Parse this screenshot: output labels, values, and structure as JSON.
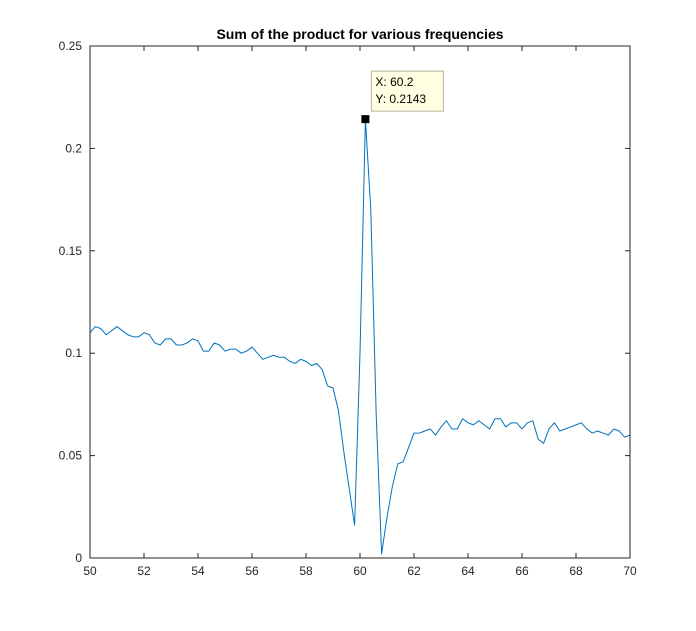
{
  "chart_data": {
    "type": "line",
    "title": "Sum of the product for various frequencies",
    "xlabel": "",
    "ylabel": "",
    "xlim": [
      50,
      70
    ],
    "ylim": [
      0,
      0.25
    ],
    "xticks": [
      50,
      52,
      54,
      56,
      58,
      60,
      62,
      64,
      66,
      68,
      70
    ],
    "xtick_labels": [
      "50",
      "52",
      "54",
      "56",
      "58",
      "60",
      "62",
      "64",
      "66",
      "68",
      "70"
    ],
    "yticks": [
      0,
      0.05,
      0.1,
      0.15,
      0.2,
      0.25
    ],
    "ytick_labels": [
      "0",
      "0.05",
      "0.1",
      "0.15",
      "0.2",
      "0.25"
    ],
    "grid": false,
    "series": [
      {
        "color": "#0072BD",
        "x": [
          50.0,
          50.2,
          50.4,
          50.6,
          50.8,
          51.0,
          51.2,
          51.4,
          51.6,
          51.8,
          52.0,
          52.2,
          52.4,
          52.6,
          52.8,
          53.0,
          53.2,
          53.4,
          53.6,
          53.8,
          54.0,
          54.2,
          54.4,
          54.6,
          54.8,
          55.0,
          55.2,
          55.4,
          55.6,
          55.8,
          56.0,
          56.2,
          56.4,
          56.6,
          56.8,
          57.0,
          57.2,
          57.4,
          57.6,
          57.8,
          58.0,
          58.2,
          58.4,
          58.6,
          58.8,
          59.0,
          59.2,
          59.4,
          59.6,
          59.8,
          60.0,
          60.2,
          60.4,
          60.6,
          60.8,
          61.0,
          61.2,
          61.4,
          61.6,
          61.8,
          62.0,
          62.2,
          62.4,
          62.6,
          62.8,
          63.0,
          63.2,
          63.4,
          63.6,
          63.8,
          64.0,
          64.2,
          64.4,
          64.6,
          64.8,
          65.0,
          65.2,
          65.4,
          65.6,
          65.8,
          66.0,
          66.2,
          66.4,
          66.6,
          66.8,
          67.0,
          67.2,
          67.4,
          67.6,
          67.8,
          68.0,
          68.2,
          68.4,
          68.6,
          68.8,
          69.0,
          69.2,
          69.4,
          69.6,
          69.8,
          70.0
        ],
        "y": [
          0.11,
          0.113,
          0.112,
          0.109,
          0.111,
          0.113,
          0.111,
          0.109,
          0.108,
          0.108,
          0.11,
          0.109,
          0.105,
          0.104,
          0.107,
          0.107,
          0.104,
          0.104,
          0.105,
          0.107,
          0.106,
          0.101,
          0.101,
          0.105,
          0.104,
          0.101,
          0.102,
          0.102,
          0.1,
          0.101,
          0.103,
          0.1,
          0.097,
          0.098,
          0.099,
          0.098,
          0.098,
          0.096,
          0.095,
          0.097,
          0.096,
          0.094,
          0.095,
          0.092,
          0.084,
          0.083,
          0.072,
          0.052,
          0.034,
          0.016,
          0.1,
          0.2143,
          0.17,
          0.07,
          0.002,
          0.02,
          0.035,
          0.046,
          0.047,
          0.054,
          0.061,
          0.061,
          0.062,
          0.063,
          0.06,
          0.064,
          0.067,
          0.063,
          0.063,
          0.068,
          0.066,
          0.065,
          0.067,
          0.065,
          0.063,
          0.068,
          0.068,
          0.064,
          0.066,
          0.066,
          0.063,
          0.066,
          0.067,
          0.058,
          0.056,
          0.063,
          0.066,
          0.062,
          0.063,
          0.064,
          0.065,
          0.066,
          0.063,
          0.061,
          0.062,
          0.061,
          0.06,
          0.063,
          0.062,
          0.059,
          0.06
        ]
      }
    ],
    "datatip": {
      "x": 60.2,
      "y": 0.2143,
      "x_text": "X: 60.2",
      "y_text": "Y: 0.2143"
    }
  }
}
